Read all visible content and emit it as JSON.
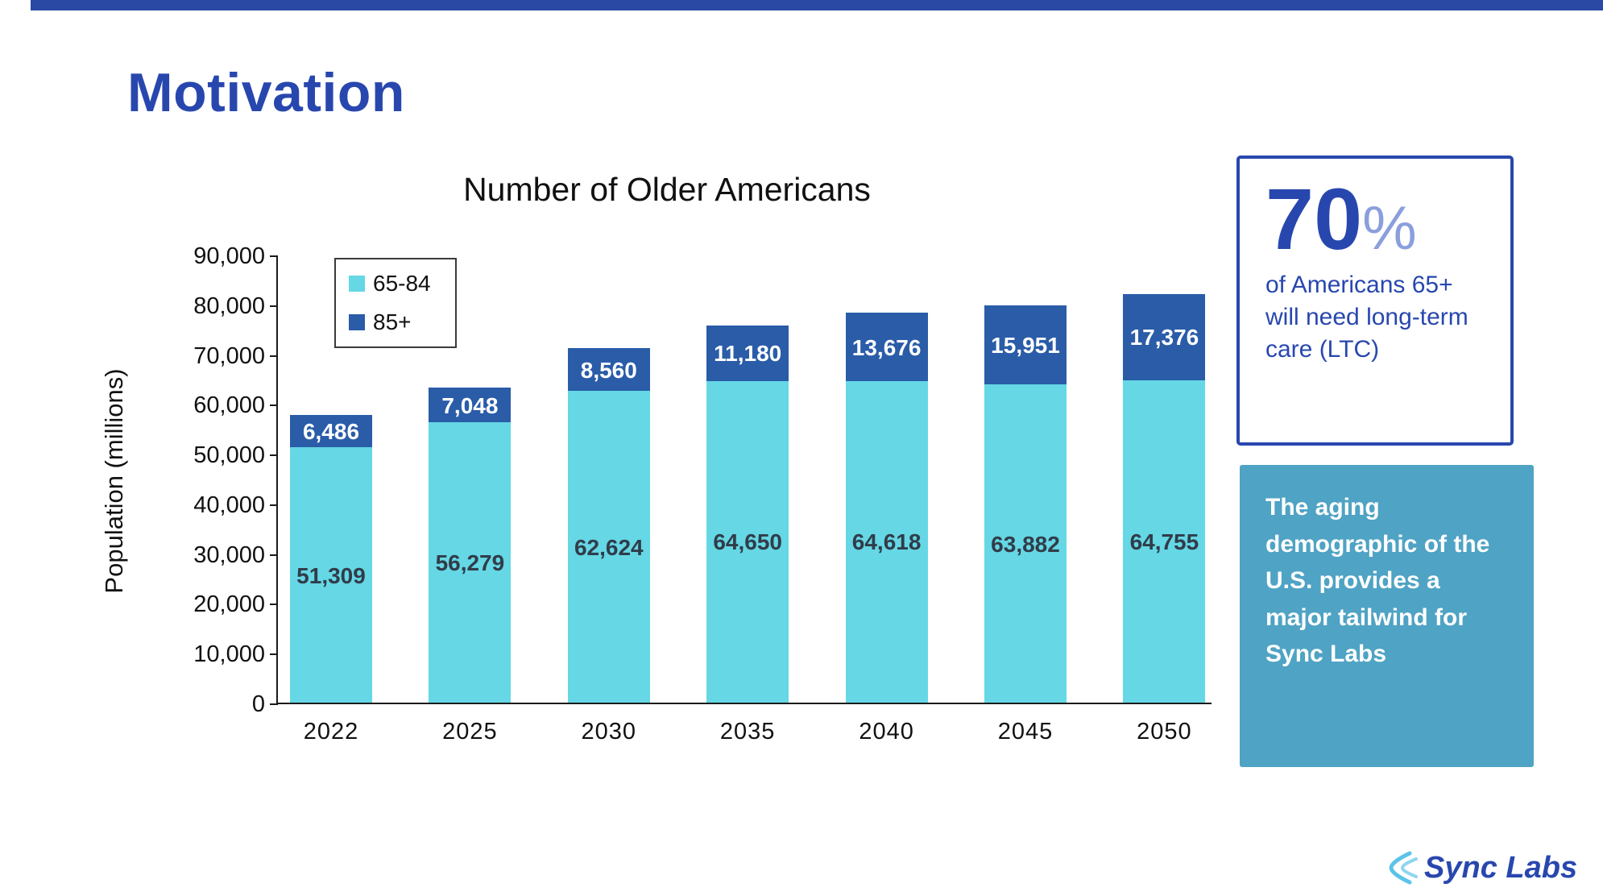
{
  "title": "Motivation",
  "chart_data": {
    "type": "bar",
    "stacked": true,
    "title": "Number of Older Americans",
    "xlabel": "",
    "ylabel": "Population (millions)",
    "categories": [
      "2022",
      "2025",
      "2030",
      "2035",
      "2040",
      "2045",
      "2050"
    ],
    "series": [
      {
        "name": "65-84",
        "color": "#65d7e5",
        "values": [
          51309,
          56279,
          62624,
          64650,
          64618,
          63882,
          64755
        ]
      },
      {
        "name": "85+",
        "color": "#2a5ca8",
        "values": [
          6486,
          7048,
          8560,
          11180,
          13676,
          15951,
          17376
        ]
      }
    ],
    "ylim": [
      0,
      90000
    ],
    "ytick_step": 10000,
    "grid": false,
    "legend_position": "upper-left"
  },
  "stat_card": {
    "number": "70",
    "percent_sign": "%",
    "text": "of Americans 65+ will need long-term care (LTC)"
  },
  "tailwind_panel": {
    "text": "The aging demographic of the U.S. provides a major tailwind for Sync Labs"
  },
  "logo": {
    "text": "Sync Labs"
  },
  "colors": {
    "accent_blue": "#2847ae",
    "bar_light": "#65d7e5",
    "bar_dark": "#2a5ca8",
    "panel_teal": "#4fa3c4",
    "top_strip": "#2a49a4",
    "logo_icon_blue": "#5bc3e8"
  }
}
